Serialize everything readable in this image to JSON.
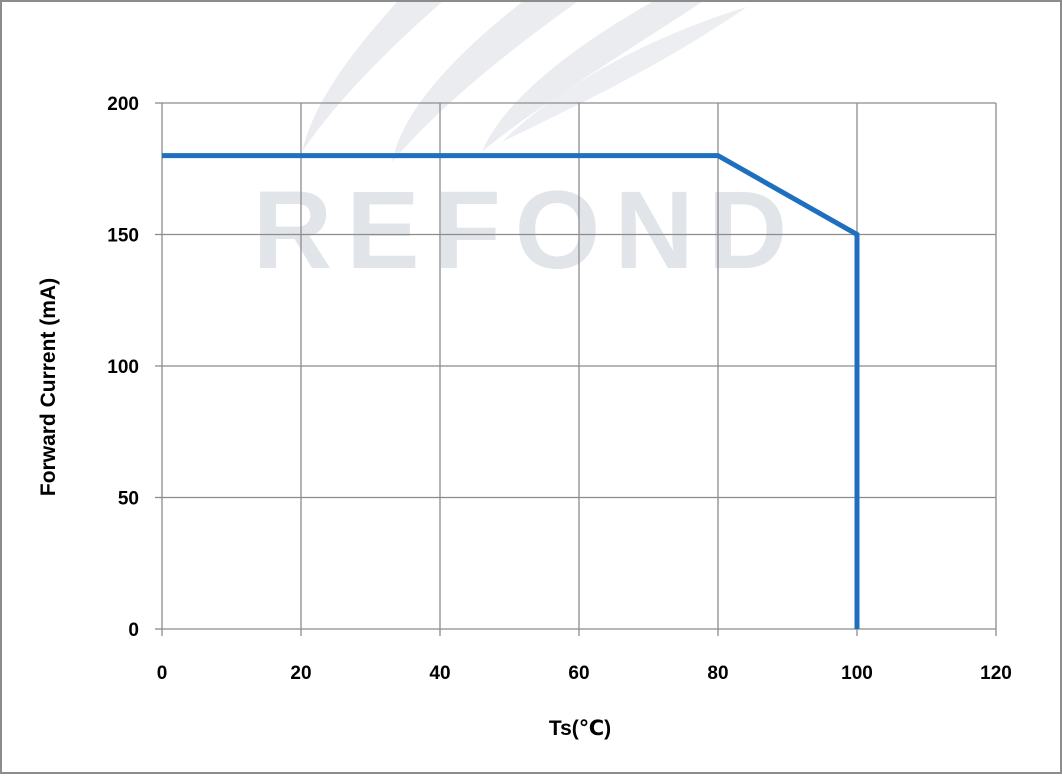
{
  "chart_data": {
    "type": "line",
    "title": "",
    "xlabel": "Ts(℃)",
    "ylabel": "Forward Current (mA)",
    "xlim": [
      0,
      120
    ],
    "ylim": [
      0,
      200
    ],
    "x_ticks": [
      0,
      20,
      40,
      60,
      80,
      100,
      120
    ],
    "y_ticks": [
      0,
      50,
      100,
      150,
      200
    ],
    "x_tick_labels": [
      "0",
      "20",
      "40",
      "60",
      "80",
      "100",
      "120"
    ],
    "y_tick_labels": [
      "0",
      "50",
      "100",
      "150",
      "200"
    ],
    "grid": true,
    "legend": "none",
    "series": [
      {
        "x": [
          0,
          80,
          100,
          100
        ],
        "y": [
          180,
          180,
          150,
          0
        ],
        "color": "#1f6fbf"
      }
    ],
    "watermark": "REFOND",
    "colors": {
      "line": "#1f6fbf",
      "grid": "#8c8c8c",
      "frame": "#8c8c8c",
      "watermark": "#c9ced8"
    }
  }
}
